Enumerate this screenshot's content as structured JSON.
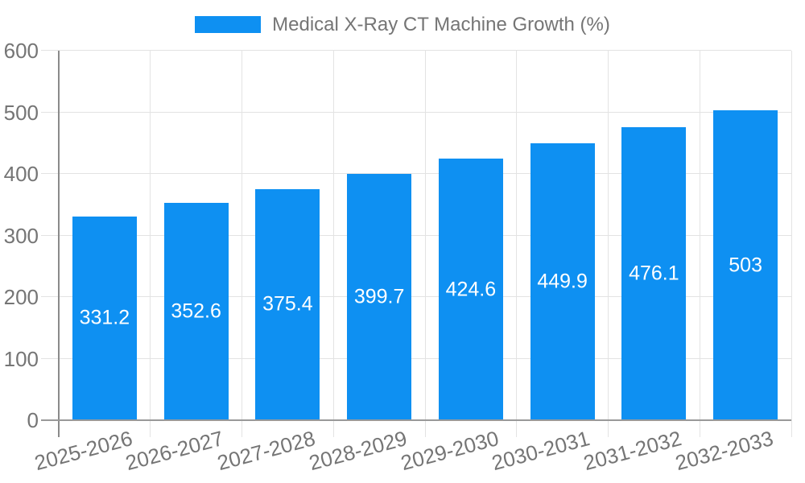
{
  "legend": {
    "label": "Medical X-Ray CT Machine Growth (%)"
  },
  "chart_data": {
    "type": "bar",
    "title": "Medical X-Ray CT Machine Growth (%)",
    "categories": [
      "2025-2026",
      "2026-2027",
      "2027-2028",
      "2028-2029",
      "2029-2030",
      "2030-2031",
      "2031-2032",
      "2032-2033"
    ],
    "values": [
      331.2,
      352.6,
      375.4,
      399.7,
      424.6,
      449.9,
      476.1,
      503
    ],
    "xlabel": "",
    "ylabel": "",
    "ylim": [
      0,
      600
    ],
    "yticks": [
      0,
      100,
      200,
      300,
      400,
      500,
      600
    ],
    "grid": true,
    "legend_position": "top-center",
    "bar_color": "#0e90f2",
    "grid_color": "#e3e3e3",
    "axis_color": "#999999",
    "y_axis_color": "#8a8a8a",
    "tick_text_color": "#757575",
    "legend_text_color": "#757575",
    "value_label_color": "#ffffff"
  }
}
